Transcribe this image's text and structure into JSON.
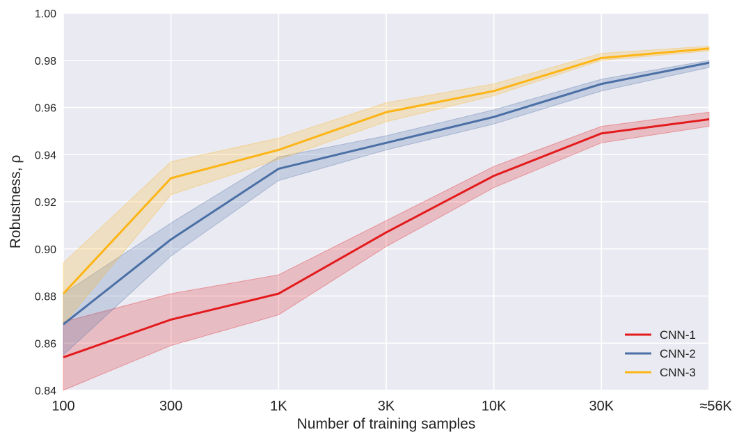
{
  "chart_data": {
    "type": "line",
    "xlabel": "Number of training samples",
    "ylabel": "Robustness, ρ",
    "categories": [
      "100",
      "300",
      "1K",
      "3K",
      "10K",
      "30K",
      "≈56K"
    ],
    "ylim": [
      0.84,
      1.0
    ],
    "yticks": [
      "0.84",
      "0.86",
      "0.88",
      "0.90",
      "0.92",
      "0.94",
      "0.96",
      "0.98",
      "1.00"
    ],
    "grid": true,
    "legend_position": "bottom-right",
    "series": [
      {
        "name": "CNN-1",
        "color": "#e31a1c",
        "values": [
          0.854,
          0.87,
          0.881,
          0.907,
          0.931,
          0.949,
          0.955
        ],
        "lower": [
          0.84,
          0.859,
          0.872,
          0.901,
          0.926,
          0.945,
          0.952
        ],
        "upper": [
          0.869,
          0.881,
          0.889,
          0.912,
          0.935,
          0.952,
          0.958
        ]
      },
      {
        "name": "CNN-2",
        "color": "#4a6fa5",
        "values": [
          0.868,
          0.904,
          0.934,
          0.945,
          0.956,
          0.97,
          0.979
        ],
        "lower": [
          0.855,
          0.897,
          0.929,
          0.942,
          0.953,
          0.967,
          0.977
        ],
        "upper": [
          0.881,
          0.911,
          0.939,
          0.948,
          0.959,
          0.972,
          0.98
        ]
      },
      {
        "name": "CNN-3",
        "color": "#fdb515",
        "values": [
          0.881,
          0.93,
          0.942,
          0.958,
          0.967,
          0.981,
          0.985
        ],
        "lower": [
          0.868,
          0.923,
          0.938,
          0.954,
          0.965,
          0.98,
          0.984
        ],
        "upper": [
          0.894,
          0.937,
          0.947,
          0.962,
          0.97,
          0.983,
          0.986
        ]
      }
    ]
  }
}
